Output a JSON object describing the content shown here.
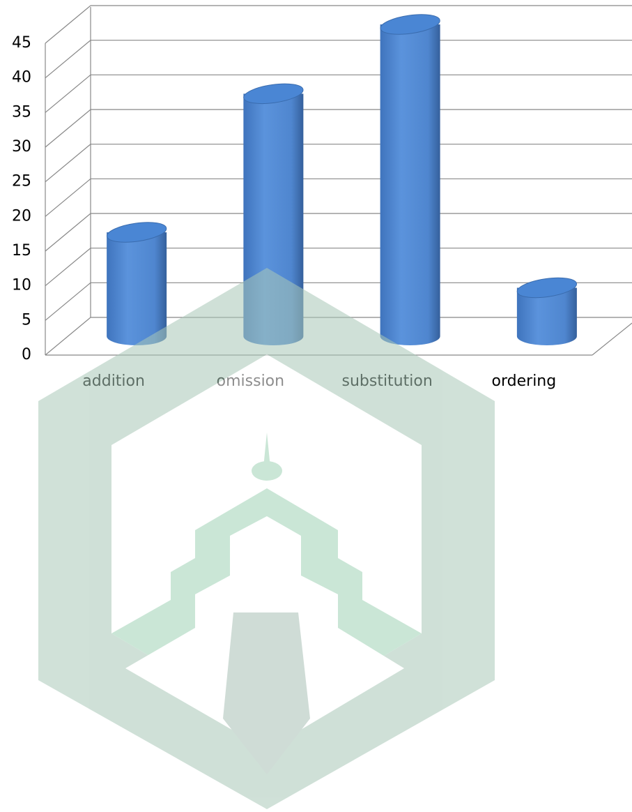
{
  "chart_data": {
    "type": "bar",
    "categories": [
      "addition",
      "omission",
      "substitution",
      "ordering"
    ],
    "values": [
      15,
      35,
      45,
      7
    ],
    "color": "#4a86d4",
    "ylim": [
      0,
      45
    ],
    "yticks": [
      0,
      5,
      10,
      15,
      20,
      25,
      30,
      35,
      40,
      45
    ],
    "grid": true
  }
}
